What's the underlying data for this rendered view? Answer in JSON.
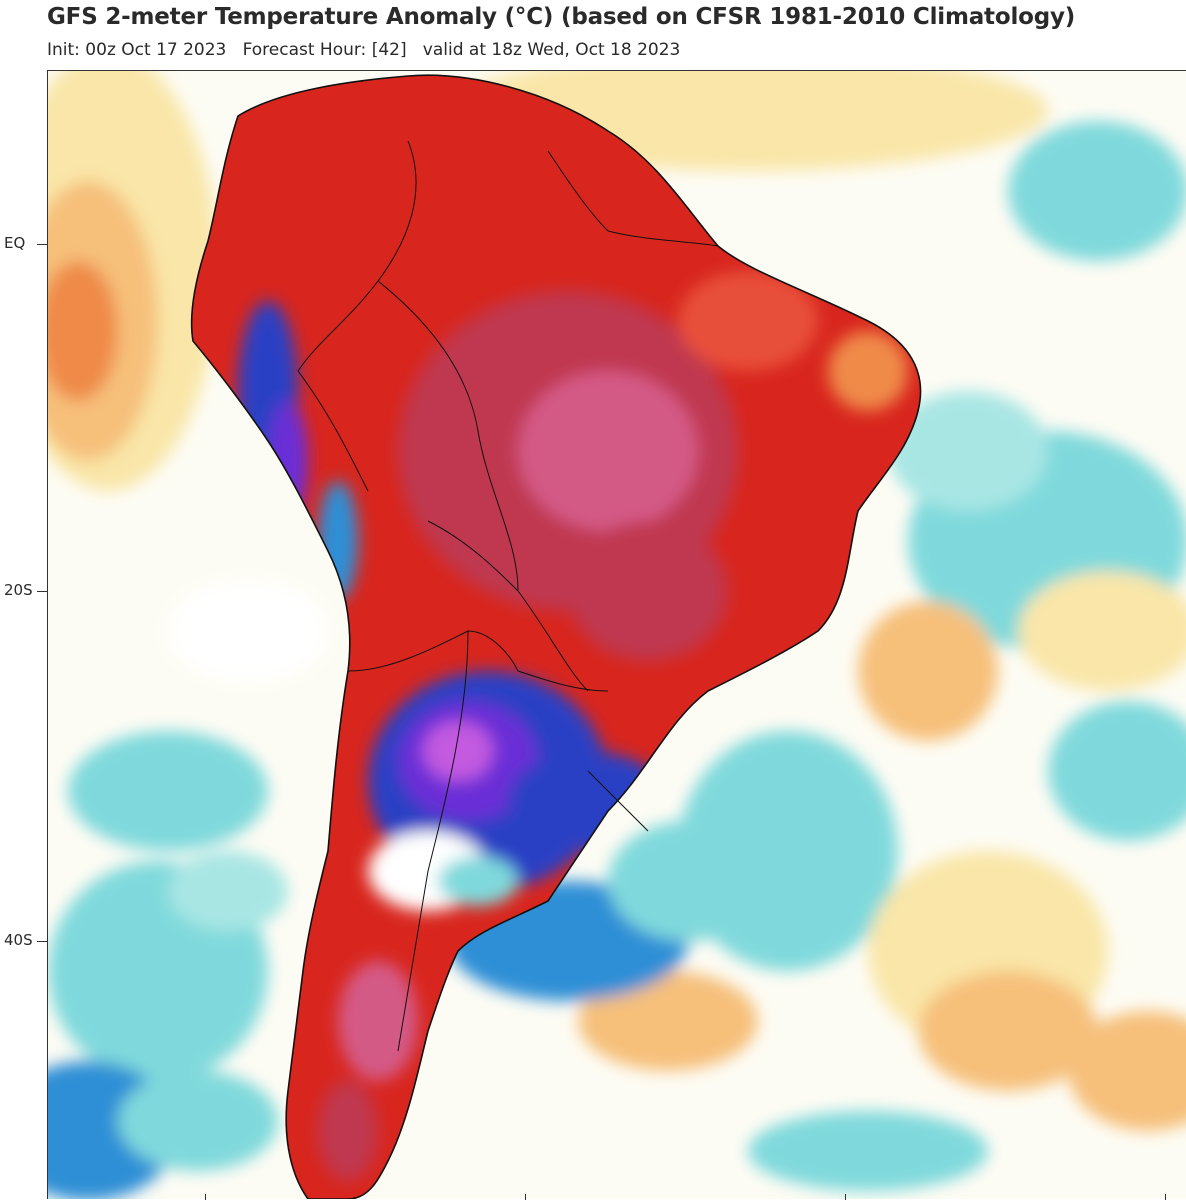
{
  "header": {
    "title": "GFS 2-meter Temperature Anomaly (°C) (based on CFSR 1981-2010 Climatology)",
    "subtitle": "Init: 00z Oct 17 2023   Forecast Hour: [42]   valid at 18z Wed, Oct 18 2023"
  },
  "axis": {
    "lat_labels": [
      "EQ",
      "20S",
      "40S"
    ]
  },
  "colors": {
    "ocean_neutral": "#ffffff",
    "warm_light": "#f9e6a8",
    "warm_mid": "#f6c07a",
    "warm_orange": "#ef8a4a",
    "hot_red": "#d8261e",
    "very_hot": "#c0394f",
    "extreme_hot": "#d45a86",
    "cool_light": "#7fd9dc",
    "cool_mid": "#2f8fd6",
    "cold_blue": "#2a3fc4",
    "very_cold": "#6a2fd6",
    "extreme_cold": "#c35ae0",
    "coastline": "#111111"
  }
}
